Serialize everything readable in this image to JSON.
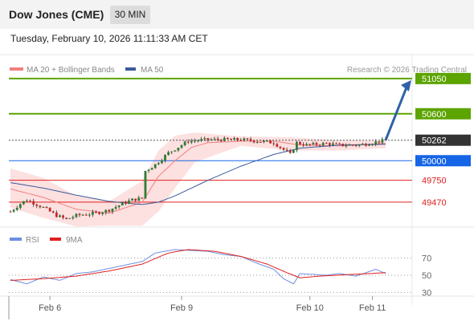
{
  "header": {
    "title": "Dow Jones (CME)",
    "timeframe": "30 MIN",
    "datetime": "Tuesday, February 10, 2026 11:11:33 AM CET"
  },
  "legend": {
    "ma20_label": "MA 20 + Bollinger Bands",
    "ma50_label": "MA 50",
    "credit": "Research © 2026 Trading Central",
    "rsi_label": "RSI",
    "ma9_label": "9MA"
  },
  "levels": [
    {
      "value": 51050,
      "label": "51050",
      "kind": "target",
      "color": "#5ca400"
    },
    {
      "value": 50600,
      "label": "50600",
      "kind": "target",
      "color": "#5ca400"
    },
    {
      "value": 50262,
      "label": "50262",
      "kind": "last",
      "color": "#333333"
    },
    {
      "value": 50000,
      "label": "50000",
      "kind": "pivot",
      "color": "#1565e6"
    },
    {
      "value": 49750,
      "label": "49750",
      "kind": "support",
      "color": "#e02020"
    },
    {
      "value": 49470,
      "label": "49470",
      "kind": "support",
      "color": "#e02020"
    }
  ],
  "rsi_ticks": [
    "70",
    "50",
    "30"
  ],
  "x_labels": [
    "Feb 6",
    "Feb 9",
    "Feb 10",
    "Feb 11"
  ],
  "colors": {
    "ma20": "#f08080",
    "ma50": "#3c5a99",
    "bollinger": "#fde0e0",
    "rsi": "#6f8fe0",
    "rsi_ma9": "#e02020",
    "candle_up": "#2e7d32",
    "candle_down": "#c62828",
    "arrow": "#2f62a8"
  },
  "chart_data": {
    "type": "candlestick",
    "price_range": [
      49100,
      51100
    ],
    "price_pivots": [
      [
        0,
        49350
      ],
      [
        3,
        49450
      ],
      [
        5,
        49500
      ],
      [
        10,
        49400
      ],
      [
        14,
        49300
      ],
      [
        17,
        49250
      ],
      [
        20,
        49300
      ],
      [
        26,
        49330
      ],
      [
        30,
        49370
      ],
      [
        34,
        49450
      ],
      [
        37,
        49500
      ],
      [
        40,
        49520
      ],
      [
        41,
        49870
      ],
      [
        44,
        49950
      ],
      [
        48,
        50100
      ],
      [
        54,
        50250
      ],
      [
        60,
        50270
      ],
      [
        70,
        50270
      ],
      [
        80,
        50230
      ],
      [
        85,
        50080
      ],
      [
        87,
        50230
      ],
      [
        90,
        50200
      ],
      [
        96,
        50220
      ],
      [
        100,
        50200
      ],
      [
        106,
        50200
      ],
      [
        110,
        50230
      ],
      [
        114,
        50262
      ]
    ],
    "ma20": [
      [
        0,
        49640
      ],
      [
        10,
        49530
      ],
      [
        20,
        49380
      ],
      [
        30,
        49330
      ],
      [
        40,
        49470
      ],
      [
        45,
        49800
      ],
      [
        50,
        50000
      ],
      [
        55,
        50170
      ],
      [
        60,
        50230
      ],
      [
        70,
        50250
      ],
      [
        80,
        50250
      ],
      [
        88,
        50200
      ],
      [
        100,
        50190
      ],
      [
        114,
        50220
      ]
    ],
    "ma50": [
      [
        0,
        49720
      ],
      [
        10,
        49650
      ],
      [
        20,
        49560
      ],
      [
        30,
        49480
      ],
      [
        40,
        49440
      ],
      [
        45,
        49470
      ],
      [
        50,
        49550
      ],
      [
        60,
        49750
      ],
      [
        70,
        49930
      ],
      [
        80,
        50080
      ],
      [
        88,
        50160
      ],
      [
        100,
        50200
      ],
      [
        114,
        50210
      ]
    ],
    "bollinger_upper": [
      [
        0,
        49900
      ],
      [
        10,
        49780
      ],
      [
        20,
        49550
      ],
      [
        30,
        49480
      ],
      [
        40,
        49740
      ],
      [
        45,
        50130
      ],
      [
        50,
        50320
      ],
      [
        56,
        50360
      ],
      [
        70,
        50310
      ],
      [
        85,
        50300
      ],
      [
        100,
        50260
      ],
      [
        114,
        50260
      ]
    ],
    "bollinger_lower": [
      [
        0,
        49400
      ],
      [
        10,
        49270
      ],
      [
        20,
        49160
      ],
      [
        30,
        49170
      ],
      [
        40,
        49170
      ],
      [
        45,
        49350
      ],
      [
        50,
        49650
      ],
      [
        56,
        49980
      ],
      [
        70,
        50190
      ],
      [
        85,
        50130
      ],
      [
        100,
        50130
      ],
      [
        114,
        50160
      ]
    ],
    "rsi_range": [
      20,
      80
    ],
    "rsi": [
      [
        0,
        45
      ],
      [
        5,
        40
      ],
      [
        10,
        48
      ],
      [
        15,
        44
      ],
      [
        20,
        52
      ],
      [
        25,
        54
      ],
      [
        30,
        58
      ],
      [
        35,
        62
      ],
      [
        40,
        66
      ],
      [
        44,
        76
      ],
      [
        50,
        80
      ],
      [
        55,
        79
      ],
      [
        60,
        78
      ],
      [
        65,
        74
      ],
      [
        70,
        72
      ],
      [
        75,
        64
      ],
      [
        80,
        57
      ],
      [
        83,
        46
      ],
      [
        86,
        40
      ],
      [
        88,
        52
      ],
      [
        92,
        51
      ],
      [
        96,
        50
      ],
      [
        100,
        52
      ],
      [
        105,
        49
      ],
      [
        108,
        53
      ],
      [
        111,
        57
      ],
      [
        114,
        52
      ]
    ],
    "rsi_ma9": [
      [
        0,
        44
      ],
      [
        10,
        46
      ],
      [
        20,
        49
      ],
      [
        30,
        55
      ],
      [
        40,
        63
      ],
      [
        48,
        76
      ],
      [
        54,
        80
      ],
      [
        62,
        78
      ],
      [
        70,
        72
      ],
      [
        78,
        63
      ],
      [
        84,
        53
      ],
      [
        88,
        47
      ],
      [
        94,
        49
      ],
      [
        104,
        51
      ],
      [
        114,
        53
      ]
    ],
    "forecast_arrow": {
      "from": 50262,
      "to": 51050
    }
  }
}
